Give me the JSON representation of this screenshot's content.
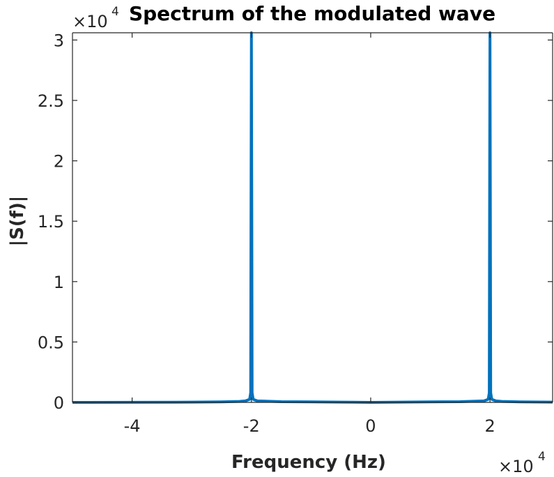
{
  "chart_data": {
    "type": "line",
    "title": "Spectrum of the modulated wave",
    "xlabel": "Frequency (Hz)",
    "ylabel": "|S(f)|",
    "xlim": [
      -50000,
      30500
    ],
    "ylim": [
      0,
      30600
    ],
    "x_ticks": [
      -40000,
      -20000,
      0,
      20000
    ],
    "x_tick_labels": [
      "-4",
      "-2",
      "0",
      "2"
    ],
    "y_ticks": [
      0,
      5000,
      10000,
      15000,
      20000,
      25000,
      30000
    ],
    "y_tick_labels": [
      "0",
      "0.5",
      "1",
      "1.5",
      "2",
      "2.5",
      "3"
    ],
    "x_exponent_base": "×10",
    "x_exponent_power": "4",
    "y_exponent_base": "×10",
    "y_exponent_power": "4",
    "grid": false,
    "series_color": "#0072BD",
    "series": [
      {
        "x": [
          -50000,
          -30000,
          -25000,
          -22000,
          -21000,
          -20300,
          -20120,
          -20060,
          -20000,
          -19940,
          -19880,
          -19700,
          -19000,
          -15000,
          -10000,
          -5000,
          0,
          5000,
          10000,
          15000,
          19000,
          19700,
          19880,
          19940,
          20000,
          20060,
          20120,
          20300,
          21000,
          22000,
          25000,
          30500
        ],
        "y": [
          0,
          20,
          40,
          80,
          120,
          250,
          800,
          17000,
          30600,
          17000,
          800,
          250,
          120,
          60,
          40,
          20,
          0,
          20,
          40,
          60,
          120,
          250,
          800,
          17000,
          30600,
          17000,
          800,
          250,
          120,
          80,
          40,
          20
        ]
      }
    ]
  }
}
